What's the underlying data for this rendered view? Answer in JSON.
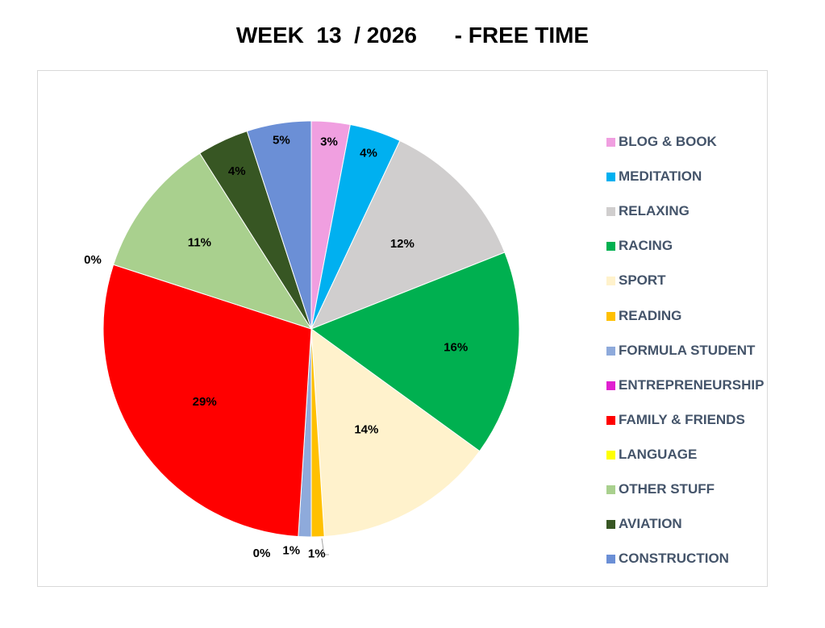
{
  "chart_data": {
    "type": "pie",
    "title": "WEEK  13  / 2026      - FREE TIME",
    "legend_position": "right",
    "slices": [
      {
        "name": "BLOG & BOOK",
        "value": 3,
        "label": "3%",
        "color": "#f09fe0"
      },
      {
        "name": "MEDITATION",
        "value": 4,
        "label": "4%",
        "color": "#00b0f0"
      },
      {
        "name": "RELAXING",
        "value": 12,
        "label": "12%",
        "color": "#d0cece"
      },
      {
        "name": "RACING",
        "value": 16,
        "label": "16%",
        "color": "#00b050"
      },
      {
        "name": "SPORT",
        "value": 14,
        "label": "14%",
        "color": "#fff2cc"
      },
      {
        "name": "READING",
        "value": 1,
        "label": "1%",
        "color": "#ffc000"
      },
      {
        "name": "FORMULA STUDENT",
        "value": 1,
        "label": "1%",
        "color": "#8eaadb"
      },
      {
        "name": "ENTREPRENEURSHIP",
        "value": 0,
        "label": "0%",
        "color": "#e020d0"
      },
      {
        "name": "FAMILY & FRIENDS",
        "value": 29,
        "label": "29%",
        "color": "#ff0000"
      },
      {
        "name": "LANGUAGE",
        "value": 0,
        "label": "0%",
        "color": "#ffff00"
      },
      {
        "name": "OTHER STUFF",
        "value": 11,
        "label": "11%",
        "color": "#a9d08e"
      },
      {
        "name": "AVIATION",
        "value": 4,
        "label": "4%",
        "color": "#375623"
      },
      {
        "name": "CONSTRUCTION",
        "value": 5,
        "label": "5%",
        "color": "#6b8fd6"
      }
    ]
  }
}
